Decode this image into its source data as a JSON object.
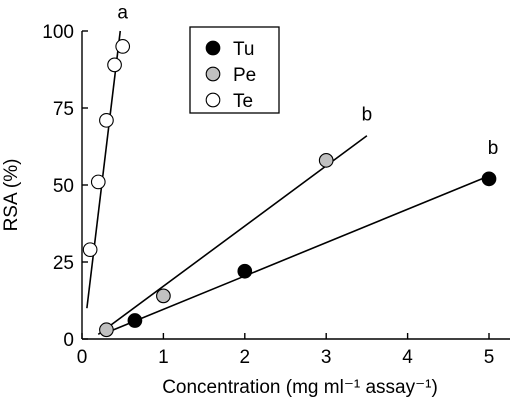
{
  "chart_data": {
    "type": "scatter",
    "title": "",
    "xlabel": "Concentration (mg ml⁻¹ assay⁻¹)",
    "ylabel": "RSA (%)",
    "xlim": [
      0,
      5.3
    ],
    "ylim": [
      0,
      100
    ],
    "xticks": [
      0,
      1,
      2,
      3,
      4,
      5
    ],
    "yticks": [
      0,
      25,
      50,
      75,
      100
    ],
    "grid": false,
    "legend_position": "top-center",
    "series": [
      {
        "name": "Tu",
        "marker_fill": "#000000",
        "points": [
          [
            0.65,
            6
          ],
          [
            2,
            22
          ],
          [
            5,
            52
          ]
        ],
        "fit_line": [
          [
            0.25,
            1.5
          ],
          [
            5.05,
            53.5
          ]
        ]
      },
      {
        "name": "Pe",
        "marker_fill": "#c0c0c0",
        "points": [
          [
            0.3,
            3
          ],
          [
            1,
            14
          ],
          [
            3,
            58
          ]
        ],
        "fit_line": [
          [
            0.2,
            1.5
          ],
          [
            3.5,
            66
          ]
        ]
      },
      {
        "name": "Te",
        "marker_fill": "#ffffff",
        "points": [
          [
            0.1,
            29
          ],
          [
            0.2,
            51
          ],
          [
            0.3,
            71
          ],
          [
            0.4,
            89
          ],
          [
            0.5,
            95
          ]
        ],
        "fit_line": [
          [
            0.06,
            10
          ],
          [
            0.47,
            100
          ]
        ]
      }
    ],
    "annotations": [
      {
        "text": "a",
        "x": 0.5,
        "y": 104
      },
      {
        "text": "b",
        "x": 3.5,
        "y": 71
      },
      {
        "text": "b",
        "x": 5.05,
        "y": 60
      }
    ]
  }
}
